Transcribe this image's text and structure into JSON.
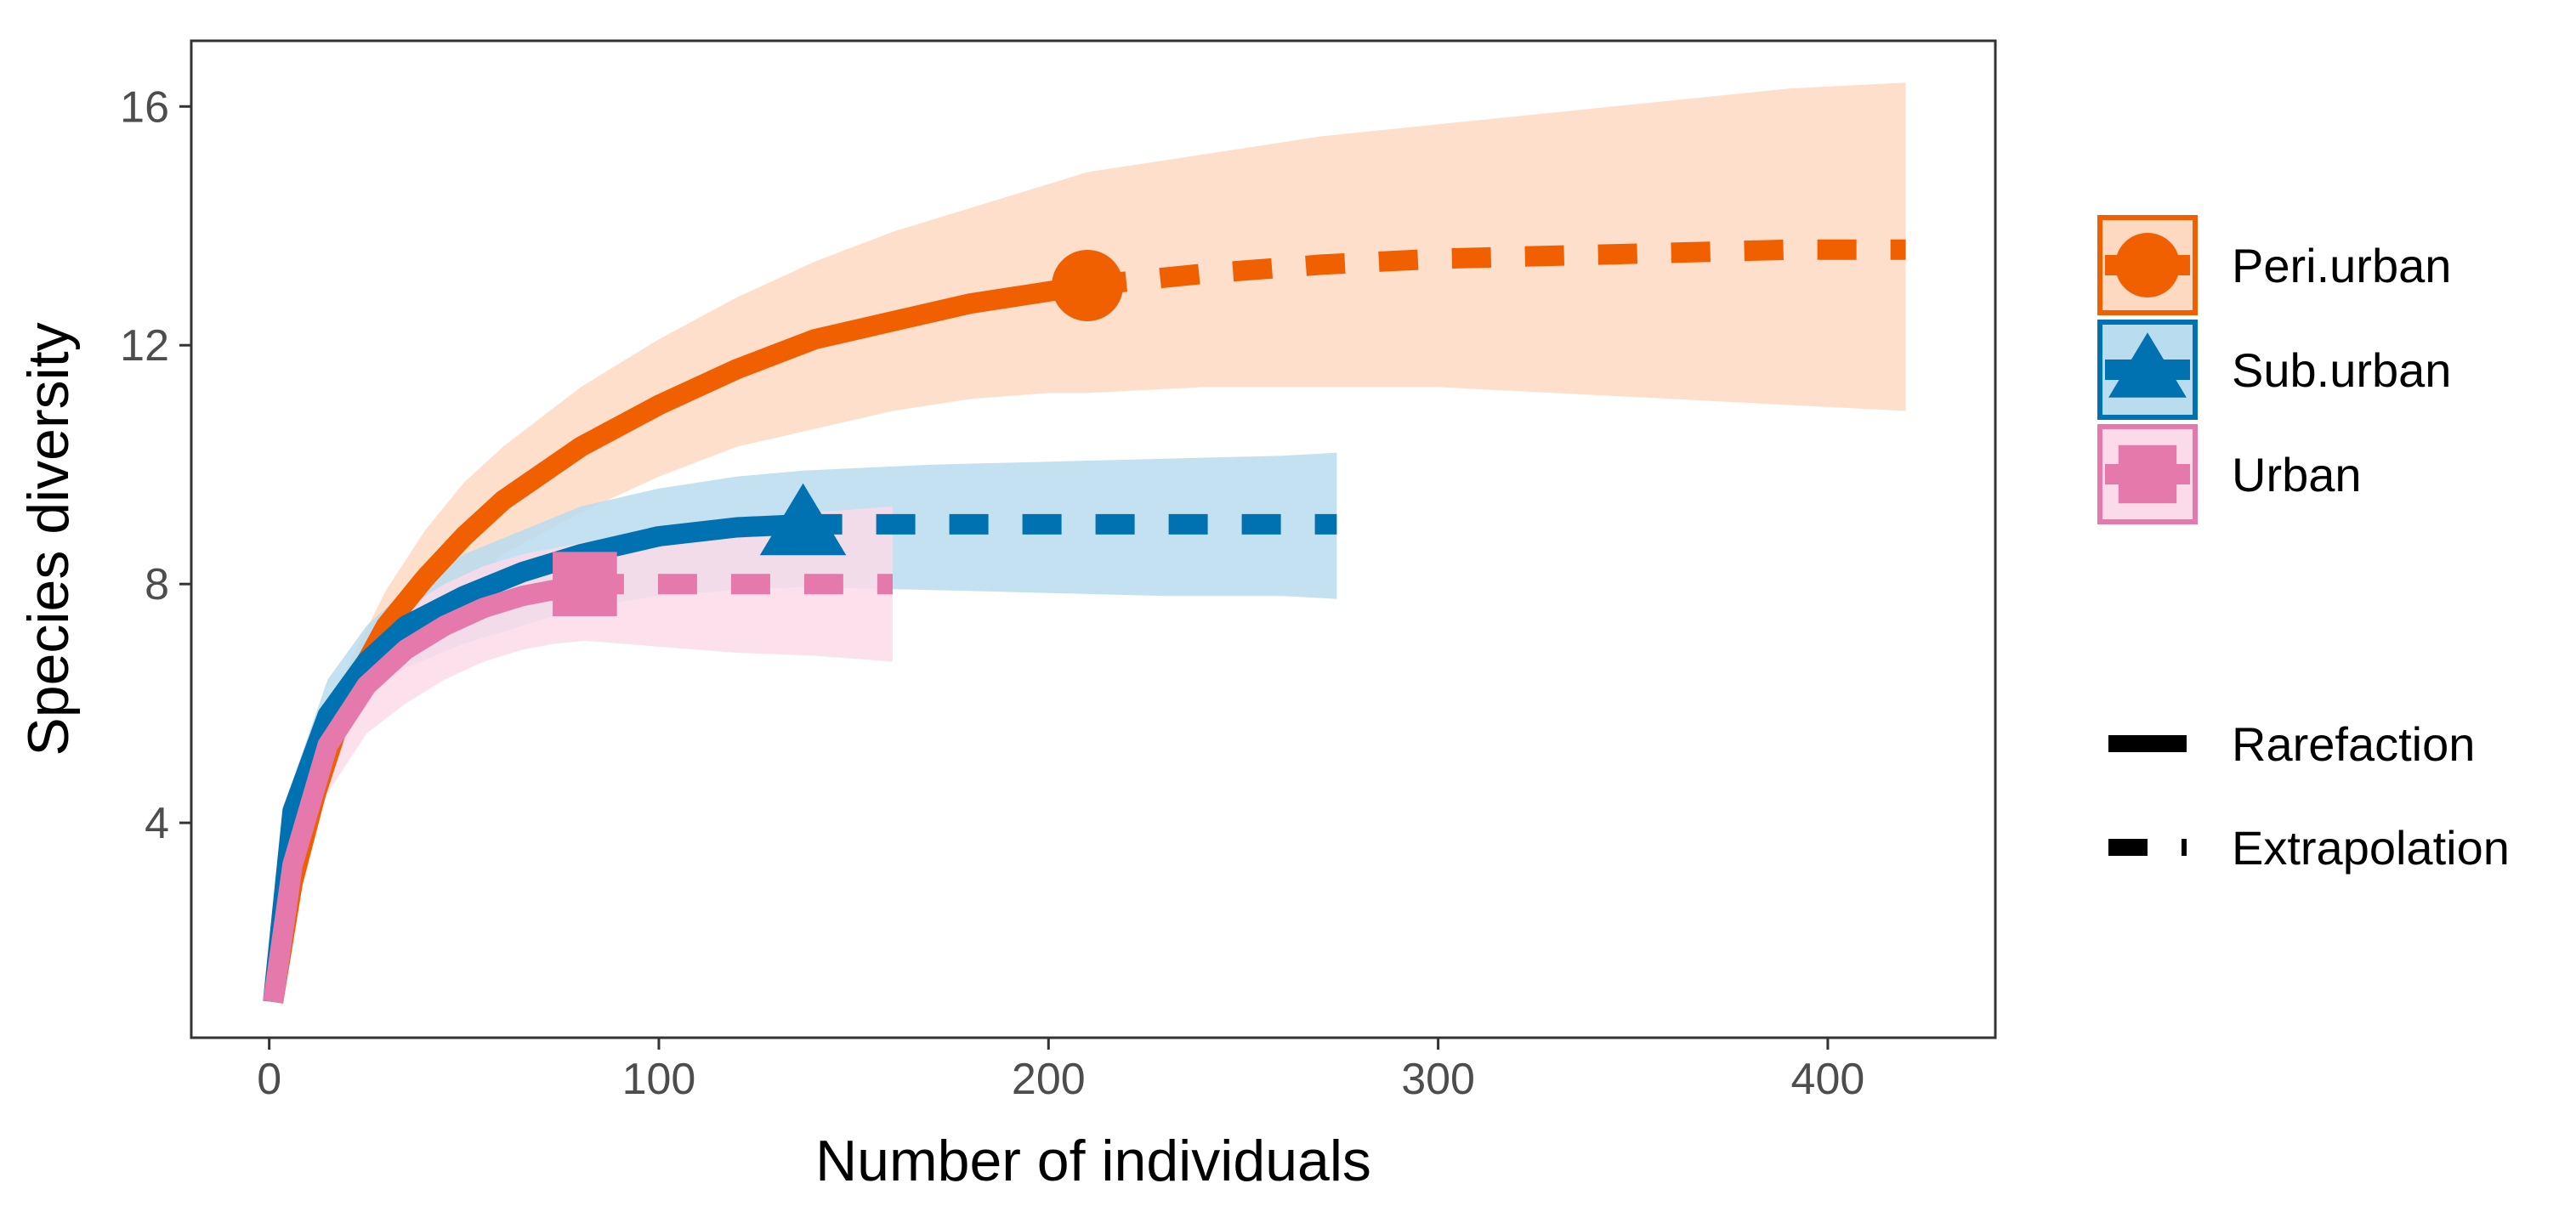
{
  "chart_data": {
    "type": "line",
    "title": "",
    "xlabel": "Number of individuals",
    "ylabel": "Species diversity",
    "xlim": [
      -20,
      443
    ],
    "ylim": [
      0.4,
      17.1
    ],
    "x_ticks": [
      0,
      100,
      200,
      300,
      400
    ],
    "y_ticks": [
      4,
      8,
      12,
      16
    ],
    "x_tick_labels": [
      "0",
      "100",
      "200",
      "300",
      "400"
    ],
    "y_tick_labels": [
      "4",
      "8",
      "12",
      "16"
    ],
    "grid": false,
    "legend_position": "right",
    "series": [
      {
        "name": "Peri.urban",
        "color": "#f05f00",
        "fill": "#fdd9c2",
        "marker": "circle",
        "observed": {
          "x": 210,
          "y": 13.0
        },
        "rarefaction": {
          "x": [
            1,
            6,
            12,
            20,
            30,
            40,
            50,
            60,
            80,
            100,
            120,
            140,
            160,
            180,
            200,
            210
          ],
          "y": [
            1.0,
            3.0,
            4.5,
            6.1,
            7.3,
            8.1,
            8.8,
            9.4,
            10.3,
            11.0,
            11.6,
            12.1,
            12.4,
            12.7,
            12.9,
            13.0
          ],
          "lower": [
            1.0,
            2.6,
            4.0,
            5.5,
            6.5,
            7.3,
            7.9,
            8.5,
            9.2,
            9.8,
            10.3,
            10.6,
            10.9,
            11.1,
            11.2,
            11.2
          ],
          "upper": [
            1.0,
            3.4,
            5.0,
            6.6,
            7.9,
            8.9,
            9.7,
            10.3,
            11.3,
            12.1,
            12.8,
            13.4,
            13.9,
            14.3,
            14.7,
            14.9
          ]
        },
        "extrapolation": {
          "x": [
            210,
            240,
            270,
            300,
            330,
            360,
            390,
            420
          ],
          "y": [
            13.0,
            13.2,
            13.35,
            13.45,
            13.5,
            13.55,
            13.6,
            13.6
          ],
          "lower": [
            11.2,
            11.3,
            11.3,
            11.3,
            11.2,
            11.1,
            11.0,
            10.9
          ],
          "upper": [
            14.9,
            15.2,
            15.5,
            15.7,
            15.9,
            16.1,
            16.3,
            16.4
          ]
        }
      },
      {
        "name": "Sub.urban",
        "color": "#0072b2",
        "fill": "#b9dcee",
        "marker": "triangle",
        "observed": {
          "x": 137,
          "y": 9.0
        },
        "rarefaction": {
          "x": [
            1,
            6,
            15,
            25,
            35,
            50,
            65,
            80,
            100,
            120,
            137
          ],
          "y": [
            1.0,
            4.2,
            5.8,
            6.7,
            7.3,
            7.8,
            8.2,
            8.5,
            8.8,
            8.95,
            9.0
          ],
          "lower": [
            1.0,
            3.6,
            5.2,
            6.1,
            6.6,
            7.0,
            7.3,
            7.6,
            7.8,
            7.9,
            7.95
          ],
          "upper": [
            1.0,
            4.7,
            6.4,
            7.3,
            7.9,
            8.5,
            8.9,
            9.3,
            9.6,
            9.8,
            9.9
          ]
        },
        "extrapolation": {
          "x": [
            137,
            170,
            200,
            230,
            260,
            274
          ],
          "y": [
            9.0,
            9.0,
            9.0,
            9.0,
            9.0,
            9.0
          ],
          "lower": [
            7.95,
            7.9,
            7.85,
            7.8,
            7.8,
            7.75
          ],
          "upper": [
            9.9,
            10.0,
            10.05,
            10.1,
            10.15,
            10.2
          ]
        }
      },
      {
        "name": "Urban",
        "color": "#e579ab",
        "fill": "#fbdbe9",
        "marker": "square",
        "observed": {
          "x": 81,
          "y": 8.0
        },
        "rarefaction": {
          "x": [
            1,
            6,
            15,
            25,
            35,
            45,
            55,
            65,
            73,
            81
          ],
          "y": [
            1.0,
            3.3,
            5.3,
            6.3,
            6.9,
            7.3,
            7.6,
            7.8,
            7.9,
            8.0
          ],
          "lower": [
            1.0,
            2.9,
            4.5,
            5.5,
            6.0,
            6.4,
            6.7,
            6.9,
            7.0,
            7.05
          ],
          "upper": [
            1.0,
            3.8,
            6.0,
            7.0,
            7.6,
            8.0,
            8.3,
            8.5,
            8.6,
            8.7
          ]
        },
        "extrapolation": {
          "x": [
            81,
            100,
            120,
            140,
            160
          ],
          "y": [
            8.0,
            8.0,
            8.0,
            8.0,
            8.0
          ],
          "lower": [
            7.05,
            6.95,
            6.85,
            6.8,
            6.7
          ],
          "upper": [
            8.7,
            8.9,
            9.1,
            9.2,
            9.3
          ]
        }
      }
    ],
    "legend": {
      "groups": [
        "Peri.urban",
        "Sub.urban",
        "Urban"
      ],
      "linetypes": [
        "Rarefaction",
        "Extrapolation"
      ]
    }
  }
}
